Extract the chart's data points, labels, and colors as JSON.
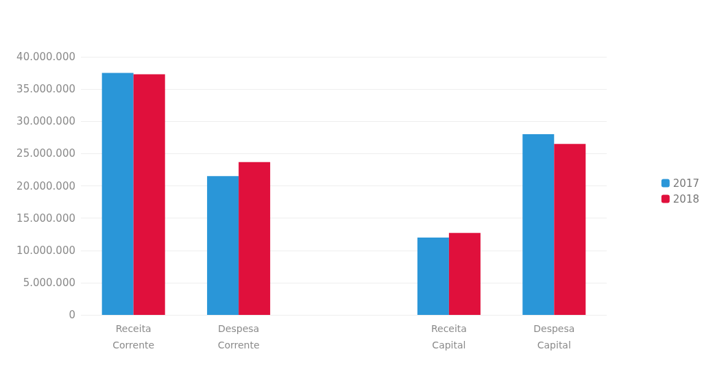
{
  "chart_data": {
    "type": "bar",
    "categories": [
      "Receita\nCorrente",
      "Despesa\nCorrente",
      null,
      "Receita\nCapital",
      "Despesa\nCapital"
    ],
    "series": [
      {
        "name": "2017",
        "color": "#2a96d8",
        "values": [
          37500000,
          21500000,
          null,
          12000000,
          28000000
        ]
      },
      {
        "name": "2018",
        "color": "#e0103c",
        "values": [
          37300000,
          23700000,
          null,
          12700000,
          26500000
        ]
      }
    ],
    "ylim": [
      0,
      40000000
    ],
    "yticks": [
      {
        "value": 0,
        "label": "0"
      },
      {
        "value": 5000000,
        "label": "5.000.000"
      },
      {
        "value": 10000000,
        "label": "10.000.000"
      },
      {
        "value": 15000000,
        "label": "15.000.000"
      },
      {
        "value": 20000000,
        "label": "20.000.000"
      },
      {
        "value": 25000000,
        "label": "25.000.000"
      },
      {
        "value": 30000000,
        "label": "30.000.000"
      },
      {
        "value": 35000000,
        "label": "35.000.000"
      },
      {
        "value": 40000000,
        "label": "40.000.000"
      }
    ],
    "grid": "y",
    "legend": "right"
  }
}
